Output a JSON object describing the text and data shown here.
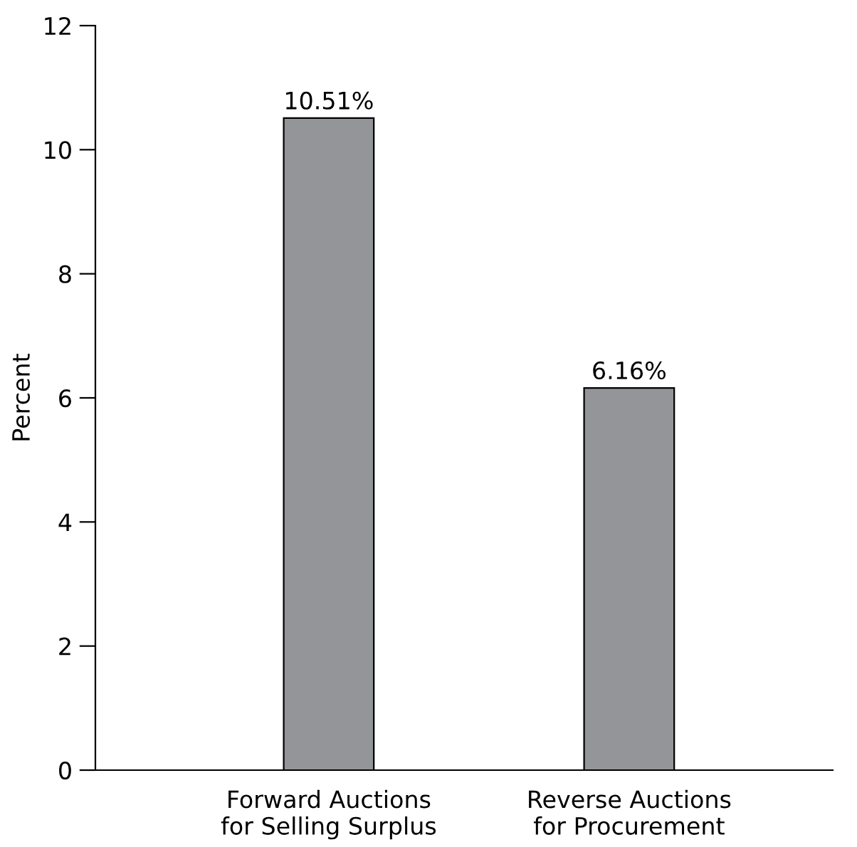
{
  "chart_data": {
    "type": "bar",
    "ylabel": "Percent",
    "categories": [
      "Forward Auctions\nfor Selling Surplus",
      "Reverse Auctions\nfor Procurement"
    ],
    "values": [
      10.51,
      6.16
    ],
    "value_labels": [
      "10.51%",
      "6.16%"
    ],
    "color": "#939598",
    "ylim": [
      0,
      12
    ],
    "yticks": [
      0,
      2,
      4,
      6,
      8,
      10,
      12
    ],
    "grid": false,
    "legend": false
  }
}
